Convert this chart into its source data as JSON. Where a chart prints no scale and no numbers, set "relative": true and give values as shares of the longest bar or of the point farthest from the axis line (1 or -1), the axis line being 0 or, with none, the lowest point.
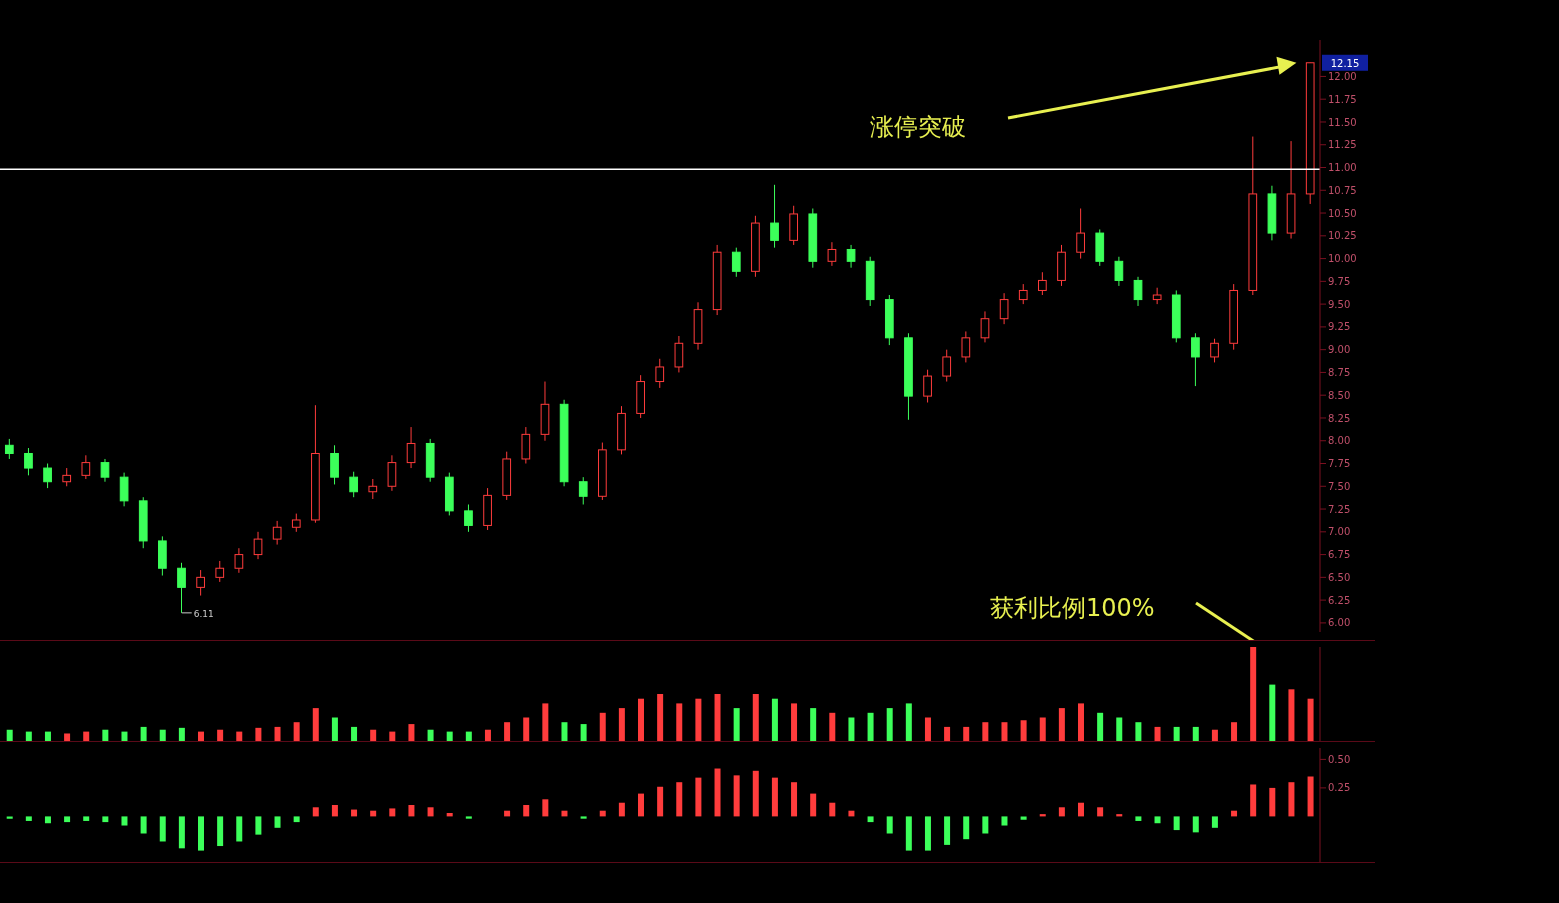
{
  "chart_data": [
    {
      "type": "candlestick",
      "tick_labels": "y",
      "categories": [
        null,
        null,
        null,
        null,
        null,
        null,
        null,
        null,
        null,
        null,
        null,
        null,
        null,
        null,
        null,
        null,
        null,
        null,
        null,
        null,
        null,
        null,
        null,
        null,
        null,
        null,
        null,
        null,
        null,
        null,
        null,
        null,
        null,
        null,
        null,
        null,
        null,
        null,
        null,
        null,
        null,
        null,
        null,
        null,
        null,
        null,
        null,
        null,
        null,
        null,
        null,
        null,
        null,
        null,
        null,
        null,
        null,
        null,
        null,
        null,
        null,
        null,
        null,
        null,
        null,
        null,
        null,
        null,
        null
      ],
      "colors": [
        "#3cff5a",
        "#3cff5a",
        "#3cff5a",
        "#ff3c3c",
        "#ff3c3c",
        "#3cff5a",
        "#3cff5a",
        "#3cff5a",
        "#3cff5a",
        "#3cff5a",
        "#ff3c3c",
        "#ff3c3c",
        "#ff3c3c",
        "#ff3c3c",
        "#ff3c3c",
        "#ff3c3c",
        "#ff3c3c",
        "#3cff5a",
        "#3cff5a",
        "#ff3c3c",
        "#ff3c3c",
        "#ff3c3c",
        "#3cff5a",
        "#3cff5a",
        "#3cff5a",
        "#ff3c3c",
        "#ff3c3c",
        "#ff3c3c",
        "#ff3c3c",
        "#3cff5a",
        "#3cff5a",
        "#ff3c3c",
        "#ff3c3c",
        "#ff3c3c",
        "#ff3c3c",
        "#ff3c3c",
        "#ff3c3c",
        "#ff3c3c",
        "#3cff5a",
        "#ff3c3c",
        "#3cff5a",
        "#ff3c3c",
        "#3cff5a",
        "#ff3c3c",
        "#3cff5a",
        "#3cff5a",
        "#3cff5a",
        "#3cff5a",
        "#ff3c3c",
        "#ff3c3c",
        "#ff3c3c",
        "#ff3c3c",
        "#ff3c3c",
        "#ff3c3c",
        "#ff3c3c",
        "#ff3c3c",
        "#ff3c3c",
        "#3cff5a",
        "#3cff5a",
        "#3cff5a",
        "#ff3c3c",
        "#3cff5a",
        "#3cff5a",
        "#ff3c3c",
        "#ff3c3c",
        "#ff3c3c",
        "#3cff5a",
        "#ff3c3c",
        "#ff3c3c"
      ],
      "ohlc": [
        [
          7.95,
          8.02,
          7.8,
          7.86
        ],
        [
          7.86,
          7.92,
          7.62,
          7.7
        ],
        [
          7.7,
          7.75,
          7.48,
          7.55
        ],
        [
          7.55,
          7.7,
          7.5,
          7.62
        ],
        [
          7.62,
          7.84,
          7.58,
          7.76
        ],
        [
          7.76,
          7.8,
          7.55,
          7.6
        ],
        [
          7.6,
          7.65,
          7.28,
          7.34
        ],
        [
          7.34,
          7.38,
          6.82,
          6.9
        ],
        [
          6.9,
          6.95,
          6.52,
          6.6
        ],
        [
          6.6,
          6.66,
          6.11,
          6.39
        ],
        [
          6.39,
          6.58,
          6.3,
          6.5
        ],
        [
          6.5,
          6.68,
          6.45,
          6.6
        ],
        [
          6.6,
          6.82,
          6.55,
          6.75
        ],
        [
          6.75,
          7.0,
          6.7,
          6.92
        ],
        [
          6.92,
          7.12,
          6.86,
          7.05
        ],
        [
          7.05,
          7.2,
          7.0,
          7.13
        ],
        [
          7.13,
          8.39,
          7.1,
          7.86
        ],
        [
          7.86,
          7.95,
          7.52,
          7.6
        ],
        [
          7.6,
          7.66,
          7.38,
          7.44
        ],
        [
          7.44,
          7.58,
          7.36,
          7.5
        ],
        [
          7.5,
          7.84,
          7.45,
          7.76
        ],
        [
          7.76,
          8.15,
          7.7,
          7.97
        ],
        [
          7.97,
          8.02,
          7.55,
          7.6
        ],
        [
          7.6,
          7.65,
          7.18,
          7.23
        ],
        [
          7.23,
          7.3,
          7.0,
          7.07
        ],
        [
          7.07,
          7.48,
          7.02,
          7.4
        ],
        [
          7.4,
          7.88,
          7.35,
          7.8
        ],
        [
          7.8,
          8.15,
          7.75,
          8.07
        ],
        [
          8.07,
          8.65,
          8.0,
          8.4
        ],
        [
          8.4,
          8.45,
          7.5,
          7.55
        ],
        [
          7.55,
          7.6,
          7.3,
          7.39
        ],
        [
          7.39,
          7.98,
          7.35,
          7.9
        ],
        [
          7.9,
          8.38,
          7.85,
          8.3
        ],
        [
          8.3,
          8.72,
          8.25,
          8.65
        ],
        [
          8.65,
          8.9,
          8.58,
          8.81
        ],
        [
          8.81,
          9.15,
          8.75,
          9.07
        ],
        [
          9.07,
          9.52,
          9.0,
          9.44
        ],
        [
          9.44,
          10.15,
          9.38,
          10.07
        ],
        [
          10.07,
          10.12,
          9.8,
          9.86
        ],
        [
          9.86,
          10.47,
          9.8,
          10.39
        ],
        [
          10.39,
          10.81,
          10.12,
          10.2
        ],
        [
          10.2,
          10.58,
          10.15,
          10.49
        ],
        [
          10.49,
          10.55,
          9.9,
          9.97
        ],
        [
          9.97,
          10.18,
          9.92,
          10.1
        ],
        [
          10.1,
          10.15,
          9.9,
          9.97
        ],
        [
          9.97,
          10.02,
          9.48,
          9.55
        ],
        [
          9.55,
          9.6,
          9.05,
          9.13
        ],
        [
          9.13,
          9.18,
          8.23,
          8.49
        ],
        [
          8.49,
          8.78,
          8.42,
          8.71
        ],
        [
          8.71,
          9.0,
          8.65,
          8.92
        ],
        [
          8.92,
          9.2,
          8.86,
          9.13
        ],
        [
          9.13,
          9.42,
          9.08,
          9.34
        ],
        [
          9.34,
          9.62,
          9.28,
          9.55
        ],
        [
          9.55,
          9.72,
          9.5,
          9.65
        ],
        [
          9.65,
          9.85,
          9.6,
          9.76
        ],
        [
          9.76,
          10.15,
          9.7,
          10.07
        ],
        [
          10.07,
          10.55,
          10.0,
          10.28
        ],
        [
          10.28,
          10.32,
          9.92,
          9.97
        ],
        [
          9.97,
          10.02,
          9.7,
          9.76
        ],
        [
          9.76,
          9.8,
          9.48,
          9.55
        ],
        [
          9.55,
          9.68,
          9.5,
          9.6
        ],
        [
          9.6,
          9.65,
          9.08,
          9.13
        ],
        [
          9.13,
          9.18,
          8.6,
          8.92
        ],
        [
          8.92,
          9.12,
          8.86,
          9.07
        ],
        [
          9.07,
          9.72,
          9.0,
          9.65
        ],
        [
          9.65,
          11.34,
          9.6,
          10.71
        ],
        [
          10.71,
          10.8,
          10.2,
          10.28
        ],
        [
          10.28,
          11.29,
          10.22,
          10.71
        ],
        [
          10.71,
          12.15,
          10.6,
          12.15
        ]
      ],
      "ylim": [
        5.9,
        12.4
      ],
      "yticks": [
        {
          "value": 6,
          "label": "6.00"
        },
        {
          "value": 6.25,
          "label": "6.25"
        },
        {
          "value": 6.5,
          "label": "6.50"
        },
        {
          "value": 6.75,
          "label": "6.75"
        },
        {
          "value": 7,
          "label": "7.00"
        },
        {
          "value": 7.25,
          "label": "7.25"
        },
        {
          "value": 7.5,
          "label": "7.50"
        },
        {
          "value": 7.75,
          "label": "7.75"
        },
        {
          "value": 8,
          "label": "8.00"
        },
        {
          "value": 8.25,
          "label": "8.25"
        },
        {
          "value": 8.5,
          "label": "8.50"
        },
        {
          "value": 8.75,
          "label": "8.75"
        },
        {
          "value": 9,
          "label": "9.00"
        },
        {
          "value": 9.25,
          "label": "9.25"
        },
        {
          "value": 9.5,
          "label": "9.50"
        },
        {
          "value": 9.75,
          "label": "9.75"
        },
        {
          "value": 10,
          "label": "10.00"
        },
        {
          "value": 10.25,
          "label": "10.25"
        },
        {
          "value": 10.5,
          "label": "10.50"
        },
        {
          "value": 10.75,
          "label": "10.75"
        },
        {
          "value": 11,
          "label": "11.00"
        },
        {
          "value": 11.25,
          "label": "11.25"
        },
        {
          "value": 11.5,
          "label": "11.50"
        },
        {
          "value": 11.75,
          "label": "11.75"
        },
        {
          "value": 12,
          "label": "12.00"
        }
      ],
      "ref_lines": [
        {
          "axis": "y",
          "value": 10.98,
          "color": "#ffffff"
        }
      ],
      "annotations": [
        "涨停突破",
        "获利比例100%",
        "12.15",
        "6.11"
      ]
    },
    {
      "type": "bar",
      "relative": true,
      "tick_labels": false,
      "categories": [
        null,
        null,
        null,
        null,
        null,
        null,
        null,
        null,
        null,
        null,
        null,
        null,
        null,
        null,
        null,
        null,
        null,
        null,
        null,
        null,
        null,
        null,
        null,
        null,
        null,
        null,
        null,
        null,
        null,
        null,
        null,
        null,
        null,
        null,
        null,
        null,
        null,
        null,
        null,
        null,
        null,
        null,
        null,
        null,
        null,
        null,
        null,
        null,
        null,
        null,
        null,
        null,
        null,
        null,
        null,
        null,
        null,
        null,
        null,
        null,
        null,
        null,
        null,
        null,
        null,
        null,
        null,
        null,
        null
      ],
      "colors": [
        "#3cff5a",
        "#3cff5a",
        "#3cff5a",
        "#ff3c3c",
        "#ff3c3c",
        "#3cff5a",
        "#3cff5a",
        "#3cff5a",
        "#3cff5a",
        "#3cff5a",
        "#ff3c3c",
        "#ff3c3c",
        "#ff3c3c",
        "#ff3c3c",
        "#ff3c3c",
        "#ff3c3c",
        "#ff3c3c",
        "#3cff5a",
        "#3cff5a",
        "#ff3c3c",
        "#ff3c3c",
        "#ff3c3c",
        "#3cff5a",
        "#3cff5a",
        "#3cff5a",
        "#ff3c3c",
        "#ff3c3c",
        "#ff3c3c",
        "#ff3c3c",
        "#3cff5a",
        "#3cff5a",
        "#ff3c3c",
        "#ff3c3c",
        "#ff3c3c",
        "#ff3c3c",
        "#ff3c3c",
        "#ff3c3c",
        "#ff3c3c",
        "#3cff5a",
        "#ff3c3c",
        "#3cff5a",
        "#ff3c3c",
        "#3cff5a",
        "#ff3c3c",
        "#3cff5a",
        "#3cff5a",
        "#3cff5a",
        "#3cff5a",
        "#ff3c3c",
        "#ff3c3c",
        "#ff3c3c",
        "#ff3c3c",
        "#ff3c3c",
        "#ff3c3c",
        "#ff3c3c",
        "#ff3c3c",
        "#ff3c3c",
        "#3cff5a",
        "#3cff5a",
        "#3cff5a",
        "#ff3c3c",
        "#3cff5a",
        "#3cff5a",
        "#ff3c3c",
        "#ff3c3c",
        "#ff3c3c",
        "#3cff5a",
        "#ff3c3c",
        "#ff3c3c"
      ],
      "values": [
        0.12,
        0.1,
        0.1,
        0.08,
        0.1,
        0.12,
        0.1,
        0.15,
        0.12,
        0.14,
        0.1,
        0.12,
        0.1,
        0.14,
        0.15,
        0.2,
        0.35,
        0.25,
        0.15,
        0.12,
        0.1,
        0.18,
        0.12,
        0.1,
        0.1,
        0.12,
        0.2,
        0.25,
        0.4,
        0.2,
        0.18,
        0.3,
        0.35,
        0.45,
        0.5,
        0.4,
        0.45,
        0.5,
        0.35,
        0.5,
        0.45,
        0.4,
        0.35,
        0.3,
        0.25,
        0.3,
        0.35,
        0.4,
        0.25,
        0.15,
        0.15,
        0.2,
        0.2,
        0.22,
        0.25,
        0.35,
        0.4,
        0.3,
        0.25,
        0.2,
        0.15,
        0.15,
        0.15,
        0.12,
        0.2,
        1,
        0.6,
        0.55,
        0.45
      ]
    },
    {
      "type": "bar",
      "tick_labels": "y",
      "categories": [
        null,
        null,
        null,
        null,
        null,
        null,
        null,
        null,
        null,
        null,
        null,
        null,
        null,
        null,
        null,
        null,
        null,
        null,
        null,
        null,
        null,
        null,
        null,
        null,
        null,
        null,
        null,
        null,
        null,
        null,
        null,
        null,
        null,
        null,
        null,
        null,
        null,
        null,
        null,
        null,
        null,
        null,
        null,
        null,
        null,
        null,
        null,
        null,
        null,
        null,
        null,
        null,
        null,
        null,
        null,
        null,
        null,
        null,
        null,
        null,
        null,
        null,
        null,
        null,
        null,
        null,
        null,
        null,
        null
      ],
      "colors": [
        "#3cff5a",
        "#3cff5a",
        "#3cff5a",
        "#3cff5a",
        "#3cff5a",
        "#3cff5a",
        "#3cff5a",
        "#3cff5a",
        "#3cff5a",
        "#3cff5a",
        "#3cff5a",
        "#3cff5a",
        "#3cff5a",
        "#3cff5a",
        "#3cff5a",
        "#3cff5a",
        "#ff3c3c",
        "#ff3c3c",
        "#ff3c3c",
        "#ff3c3c",
        "#ff3c3c",
        "#ff3c3c",
        "#ff3c3c",
        "#ff3c3c",
        "#3cff5a",
        "#ff3c3c",
        "#ff3c3c",
        "#ff3c3c",
        "#ff3c3c",
        "#ff3c3c",
        "#3cff5a",
        "#ff3c3c",
        "#ff3c3c",
        "#ff3c3c",
        "#ff3c3c",
        "#ff3c3c",
        "#ff3c3c",
        "#ff3c3c",
        "#ff3c3c",
        "#ff3c3c",
        "#ff3c3c",
        "#ff3c3c",
        "#ff3c3c",
        "#ff3c3c",
        "#ff3c3c",
        "#3cff5a",
        "#3cff5a",
        "#3cff5a",
        "#3cff5a",
        "#3cff5a",
        "#3cff5a",
        "#3cff5a",
        "#3cff5a",
        "#3cff5a",
        "#ff3c3c",
        "#ff3c3c",
        "#ff3c3c",
        "#ff3c3c",
        "#ff3c3c",
        "#3cff5a",
        "#3cff5a",
        "#3cff5a",
        "#3cff5a",
        "#3cff5a",
        "#ff3c3c",
        "#ff3c3c",
        "#ff3c3c",
        "#ff3c3c",
        "#ff3c3c"
      ],
      "values": [
        -0.02,
        -0.04,
        -0.06,
        -0.05,
        -0.04,
        -0.05,
        -0.08,
        -0.15,
        -0.22,
        -0.28,
        -0.3,
        -0.26,
        -0.22,
        -0.16,
        -0.1,
        -0.05,
        0.08,
        0.1,
        0.06,
        0.05,
        0.07,
        0.1,
        0.08,
        0.03,
        -0.02,
        0.0,
        0.05,
        0.1,
        0.15,
        0.05,
        -0.02,
        0.05,
        0.12,
        0.2,
        0.26,
        0.3,
        0.34,
        0.42,
        0.36,
        0.4,
        0.34,
        0.3,
        0.2,
        0.12,
        0.05,
        -0.05,
        -0.15,
        -0.3,
        -0.3,
        -0.25,
        -0.2,
        -0.15,
        -0.08,
        -0.03,
        0.02,
        0.08,
        0.12,
        0.08,
        0.02,
        -0.04,
        -0.06,
        -0.12,
        -0.14,
        -0.1,
        0.05,
        0.28,
        0.25,
        0.3,
        0.35
      ],
      "ylim": [
        -0.4,
        0.6
      ],
      "yticks": [
        {
          "value": 0.25,
          "label": "0.25"
        },
        {
          "value": 0.5,
          "label": "0.50"
        }
      ]
    }
  ]
}
